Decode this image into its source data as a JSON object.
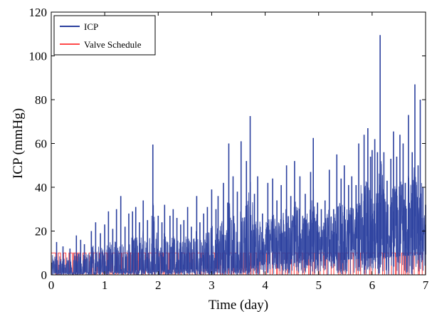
{
  "chart_data": {
    "type": "line",
    "title": "",
    "xlabel": "Time (day)",
    "ylabel": "ICP (mmHg)",
    "xlim": [
      0,
      7
    ],
    "ylim": [
      0,
      120
    ],
    "xticks": [
      0,
      1,
      2,
      3,
      4,
      5,
      6,
      7
    ],
    "yticks": [
      0,
      20,
      40,
      60,
      80,
      100,
      120
    ],
    "grid": false,
    "legend": {
      "position": "top-left"
    },
    "series": [
      {
        "name": "ICP",
        "color": "#2a3f9e",
        "peaks": [
          [
            0.1,
            15
          ],
          [
            0.22,
            13
          ],
          [
            0.35,
            12
          ],
          [
            0.47,
            18
          ],
          [
            0.55,
            16
          ],
          [
            0.62,
            14
          ],
          [
            0.75,
            20
          ],
          [
            0.83,
            24
          ],
          [
            0.92,
            19
          ],
          [
            1.0,
            23
          ],
          [
            1.07,
            29
          ],
          [
            1.15,
            21
          ],
          [
            1.22,
            30
          ],
          [
            1.3,
            36
          ],
          [
            1.38,
            22
          ],
          [
            1.45,
            28
          ],
          [
            1.52,
            29
          ],
          [
            1.58,
            31
          ],
          [
            1.65,
            24
          ],
          [
            1.72,
            34
          ],
          [
            1.8,
            25
          ],
          [
            1.9,
            59.5
          ],
          [
            2.0,
            27
          ],
          [
            2.07,
            24
          ],
          [
            2.12,
            32
          ],
          [
            2.22,
            27
          ],
          [
            2.28,
            30
          ],
          [
            2.35,
            26
          ],
          [
            2.42,
            23
          ],
          [
            2.48,
            25
          ],
          [
            2.55,
            31
          ],
          [
            2.62,
            22
          ],
          [
            2.72,
            36
          ],
          [
            2.78,
            24
          ],
          [
            2.85,
            28
          ],
          [
            2.92,
            31
          ],
          [
            3.0,
            39
          ],
          [
            3.08,
            30
          ],
          [
            3.12,
            36
          ],
          [
            3.22,
            42
          ],
          [
            3.3,
            33
          ],
          [
            3.32,
            60
          ],
          [
            3.4,
            45
          ],
          [
            3.48,
            38
          ],
          [
            3.55,
            61
          ],
          [
            3.65,
            52
          ],
          [
            3.72,
            72.5
          ],
          [
            3.8,
            37
          ],
          [
            3.86,
            45
          ],
          [
            3.95,
            28
          ],
          [
            4.05,
            42
          ],
          [
            4.14,
            44
          ],
          [
            4.22,
            34
          ],
          [
            4.3,
            41
          ],
          [
            4.4,
            50
          ],
          [
            4.48,
            36
          ],
          [
            4.55,
            52
          ],
          [
            4.65,
            45
          ],
          [
            4.75,
            37
          ],
          [
            4.85,
            47
          ],
          [
            4.9,
            62.5
          ],
          [
            4.98,
            33
          ],
          [
            5.05,
            30
          ],
          [
            5.12,
            34
          ],
          [
            5.2,
            48
          ],
          [
            5.28,
            30
          ],
          [
            5.34,
            55
          ],
          [
            5.42,
            44
          ],
          [
            5.48,
            50
          ],
          [
            5.56,
            41
          ],
          [
            5.62,
            45
          ],
          [
            5.7,
            41
          ],
          [
            5.75,
            60
          ],
          [
            5.85,
            64
          ],
          [
            5.92,
            67
          ],
          [
            5.97,
            54
          ],
          [
            6.0,
            57
          ],
          [
            6.05,
            62
          ],
          [
            6.1,
            56
          ],
          [
            6.15,
            109.5
          ],
          [
            6.22,
            56
          ],
          [
            6.28,
            43
          ],
          [
            6.35,
            53
          ],
          [
            6.4,
            65.5
          ],
          [
            6.46,
            54
          ],
          [
            6.52,
            64
          ],
          [
            6.58,
            60
          ],
          [
            6.62,
            42
          ],
          [
            6.68,
            73
          ],
          [
            6.75,
            56
          ],
          [
            6.8,
            87
          ],
          [
            6.86,
            50
          ],
          [
            6.9,
            80
          ],
          [
            6.95,
            40
          ],
          [
            7.0,
            32
          ]
        ]
      },
      {
        "name": "Valve Schedule",
        "color": "#ff4a4a",
        "high": 10,
        "low": 0
      }
    ]
  }
}
